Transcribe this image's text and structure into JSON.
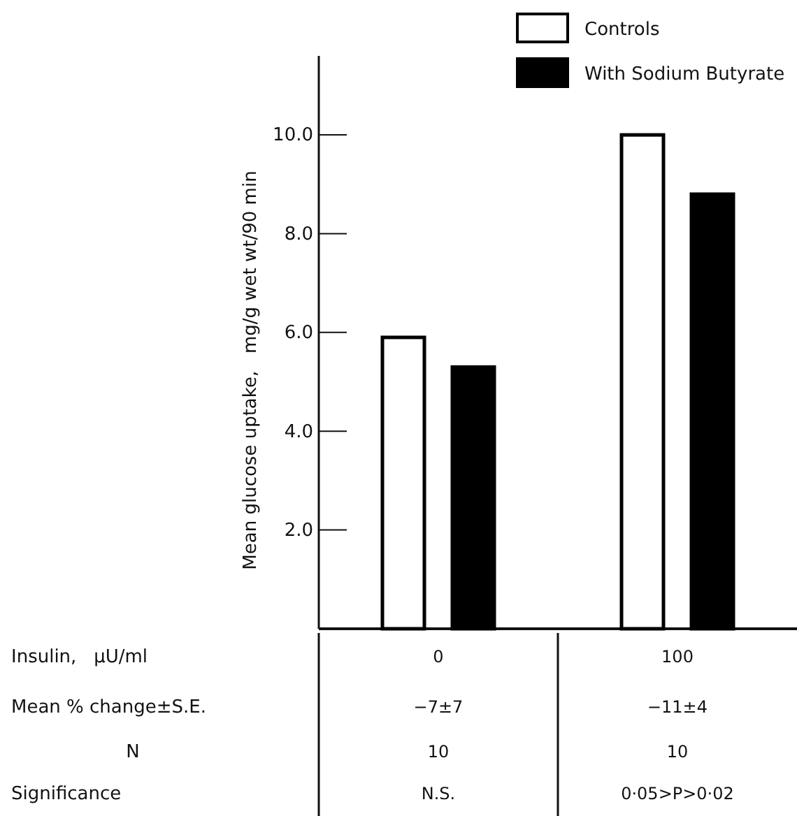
{
  "chart_data": {
    "type": "bar",
    "categories": [
      "0",
      "100"
    ],
    "series": [
      {
        "name": "Controls",
        "color": "#ffffff",
        "values": [
          5.9,
          10.0
        ]
      },
      {
        "name": "With Sodium Butyrate",
        "color": "#000000",
        "values": [
          5.3,
          8.8
        ]
      }
    ],
    "ylabel": "Mean glucose uptake,   mg/g wet wt/90 min",
    "ylim": [
      0,
      11.6
    ],
    "yticks": [
      {
        "value": 2,
        "label": "2.0"
      },
      {
        "value": 4,
        "label": "4.0"
      },
      {
        "value": 6,
        "label": "6.0"
      },
      {
        "value": 8,
        "label": "8.0"
      },
      {
        "value": 10,
        "label": "10.0"
      }
    ],
    "legend": "top right",
    "grid": false,
    "annotations": [
      "Insulin,   μU/ml",
      "Mean % change±S.E.",
      "−7±7",
      "−11±4",
      "N",
      "10",
      "10",
      "Significance",
      "N.S.",
      "0·05>P>0·02"
    ]
  }
}
